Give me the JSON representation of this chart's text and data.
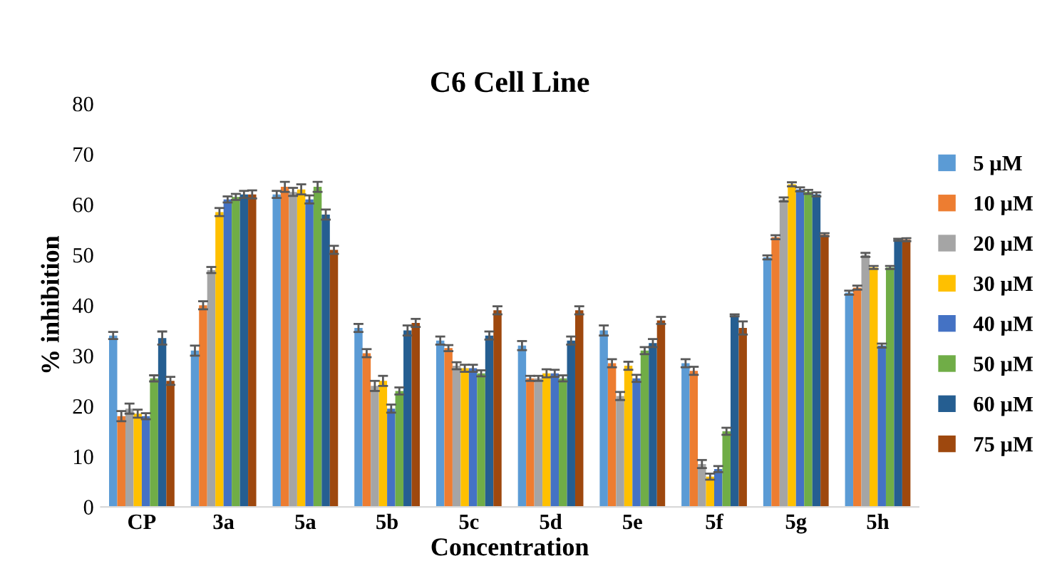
{
  "chart_data": {
    "type": "bar",
    "title": "C6 Cell Line",
    "xlabel": "Concentration",
    "ylabel": "% inhibition",
    "categories": [
      "CP",
      "3a",
      "5a",
      "5b",
      "5c",
      "5d",
      "5e",
      "5f",
      "5g",
      "5h"
    ],
    "ylim": [
      0,
      80
    ],
    "yticks": [
      0,
      10,
      20,
      30,
      40,
      50,
      60,
      70,
      80
    ],
    "grid": false,
    "legend": "right",
    "series": [
      {
        "name": "5 µM",
        "color": "#5b9bd5",
        "values": [
          34,
          31,
          62,
          35.5,
          33,
          32,
          35,
          28.5,
          49.5,
          42.5
        ],
        "errors": [
          0.7,
          1,
          0.7,
          0.8,
          0.8,
          0.9,
          1,
          0.8,
          0.4,
          0.4
        ]
      },
      {
        "name": "10 µM",
        "color": "#ed7d31",
        "values": [
          18,
          40,
          63.5,
          30.5,
          31.5,
          25.5,
          28.5,
          27,
          53.5,
          43.5
        ],
        "errors": [
          1,
          0.8,
          1,
          0.8,
          0.6,
          0.5,
          0.8,
          0.8,
          0.4,
          0.4
        ]
      },
      {
        "name": "20 µM",
        "color": "#a5a5a5",
        "values": [
          19.5,
          47,
          62.5,
          24,
          28,
          25.5,
          22,
          8.5,
          61,
          50
        ],
        "errors": [
          1,
          0.6,
          0.8,
          1,
          0.7,
          0.5,
          0.8,
          0.8,
          0.4,
          0.4
        ]
      },
      {
        "name": "30 µM",
        "color": "#ffc000",
        "values": [
          18.5,
          58.5,
          63,
          25,
          27.5,
          26.5,
          28,
          6,
          64,
          47.5
        ],
        "errors": [
          0.8,
          0.8,
          1,
          1,
          0.7,
          0.8,
          0.8,
          0.6,
          0.4,
          0.3
        ]
      },
      {
        "name": "40 µM",
        "color": "#4472c4",
        "values": [
          18,
          61,
          61,
          19.5,
          27.5,
          26.5,
          25.5,
          7.5,
          63,
          32
        ],
        "errors": [
          0.6,
          0.6,
          0.8,
          0.8,
          0.7,
          0.7,
          0.7,
          0.6,
          0.4,
          0.4
        ]
      },
      {
        "name": "50 µM",
        "color": "#70ad47",
        "values": [
          25.5,
          61.5,
          63.5,
          23,
          26.5,
          25.5,
          31,
          15,
          62.5,
          47.5
        ],
        "errors": [
          0.6,
          0.6,
          1,
          0.7,
          0.6,
          0.6,
          0.7,
          0.7,
          0.4,
          0.3
        ]
      },
      {
        "name": "60 µM",
        "color": "#255e91",
        "values": [
          33.5,
          62,
          58,
          35,
          34,
          33,
          32.5,
          38,
          62,
          53
        ],
        "errors": [
          1.3,
          0.7,
          1,
          1,
          0.8,
          0.8,
          0.8,
          0.2,
          0.4,
          0.2
        ]
      },
      {
        "name": "75 µM",
        "color": "#9e480e",
        "values": [
          25,
          62,
          51,
          36.5,
          39,
          39,
          37,
          35.5,
          54,
          53
        ],
        "errors": [
          0.8,
          0.8,
          0.8,
          0.8,
          0.8,
          0.8,
          0.7,
          1.3,
          0.3,
          0.3
        ]
      }
    ]
  }
}
